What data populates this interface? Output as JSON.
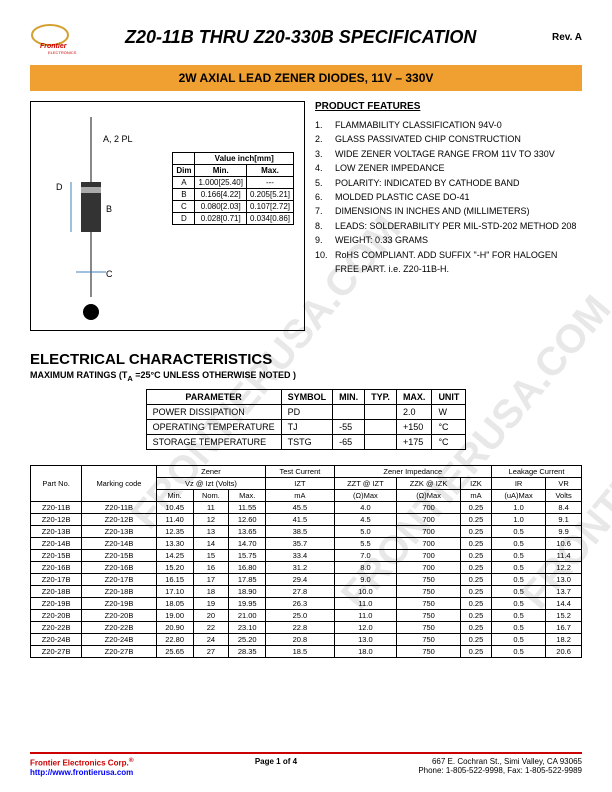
{
  "header": {
    "title": "Z20-11B THRU Z20-330B SPECIFICATION",
    "rev": "Rev. A"
  },
  "banner": "2W AXIAL LEAD ZENER DIODES, 11V – 330V",
  "dim_label_a": "A, 2 PL",
  "dim_label_b": "B",
  "dim_label_c": "C",
  "dim_label_d": "D",
  "dim_table": {
    "header": "Value inch[mm]",
    "cols": [
      "Dim",
      "Min.",
      "Max."
    ],
    "rows": [
      [
        "A",
        "1.000[25.40]",
        "---"
      ],
      [
        "B",
        "0.166[4.22]",
        "0.205[5.21]"
      ],
      [
        "C",
        "0.080[2.03]",
        "0.107[2.72]"
      ],
      [
        "D",
        "0.028[0.71]",
        "0.034[0.86]"
      ]
    ]
  },
  "features": {
    "title": "PRODUCT FEATURES",
    "items": [
      "FLAMMABILITY CLASSIFICATION 94V-0",
      "GLASS PASSIVATED CHIP CONSTRUCTION",
      "WIDE ZENER VOLTAGE RANGE FROM 11V TO 330V",
      "LOW ZENER IMPEDANCE",
      "POLARITY: INDICATED BY CATHODE BAND",
      "MOLDED PLASTIC CASE DO-41",
      "DIMENSIONS IN INCHES AND (MILLIMETERS)",
      "LEADS: SOLDERABILITY PER MIL-STD-202 METHOD 208",
      "WEIGHT: 0.33 GRAMS",
      "RoHS COMPLIANT.   ADD SUFFIX \"-H\" FOR HALOGEN FREE PART.   i.e. Z20-11B-H."
    ]
  },
  "elec": {
    "title": "ELECTRICAL CHARACTERISTICS",
    "sub": "MAXIMUM RATINGS (T",
    "sub_a": "A",
    "sub2": " =25°C UNLESS OTHERWISE NOTED )"
  },
  "ratings": {
    "cols": [
      "PARAMETER",
      "SYMBOL",
      "MIN.",
      "TYP.",
      "MAX.",
      "UNIT"
    ],
    "rows": [
      [
        "POWER DISSIPATION",
        "PD",
        "",
        "",
        "2.0",
        "W"
      ],
      [
        "OPERATING TEMPERATURE",
        "TJ",
        "-55",
        "",
        "+150",
        "°C"
      ],
      [
        "STORAGE TEMPERATURE",
        "TSTG",
        "-65",
        "",
        "+175",
        "°C"
      ]
    ]
  },
  "main": {
    "group_headers": [
      "",
      "",
      "Zener",
      "Test Current",
      "Zener Impedance",
      "Leakage Current"
    ],
    "sub_headers1": [
      "Part No.",
      "Marking code",
      "Vz  @  Izt  (Volts)",
      "IZT",
      "ZZT @ IZT",
      "ZZK @ IZK",
      "IZK",
      "IR",
      "VR"
    ],
    "sub_headers2": [
      "Min.",
      "Nom.",
      "Max.",
      "mA",
      "(Ω)Max",
      "(Ω)Max",
      "mA",
      "(uA)Max",
      "Volts"
    ],
    "rows": [
      [
        "Z20-11B",
        "Z20-11B",
        "10.45",
        "11",
        "11.55",
        "45.5",
        "4.0",
        "700",
        "0.25",
        "1.0",
        "8.4"
      ],
      [
        "Z20-12B",
        "Z20-12B",
        "11.40",
        "12",
        "12.60",
        "41.5",
        "4.5",
        "700",
        "0.25",
        "1.0",
        "9.1"
      ],
      [
        "Z20-13B",
        "Z20-13B",
        "12.35",
        "13",
        "13.65",
        "38.5",
        "5.0",
        "700",
        "0.25",
        "0.5",
        "9.9"
      ],
      [
        "Z20-14B",
        "Z20-14B",
        "13.30",
        "14",
        "14.70",
        "35.7",
        "5.5",
        "700",
        "0.25",
        "0.5",
        "10.6"
      ],
      [
        "Z20-15B",
        "Z20-15B",
        "14.25",
        "15",
        "15.75",
        "33.4",
        "7.0",
        "700",
        "0.25",
        "0.5",
        "11.4"
      ],
      [
        "Z20-16B",
        "Z20-16B",
        "15.20",
        "16",
        "16.80",
        "31.2",
        "8.0",
        "700",
        "0.25",
        "0.5",
        "12.2"
      ],
      [
        "Z20-17B",
        "Z20-17B",
        "16.15",
        "17",
        "17.85",
        "29.4",
        "9.0",
        "750",
        "0.25",
        "0.5",
        "13.0"
      ],
      [
        "Z20-18B",
        "Z20-18B",
        "17.10",
        "18",
        "18.90",
        "27.8",
        "10.0",
        "750",
        "0.25",
        "0.5",
        "13.7"
      ],
      [
        "Z20-19B",
        "Z20-19B",
        "18.05",
        "19",
        "19.95",
        "26.3",
        "11.0",
        "750",
        "0.25",
        "0.5",
        "14.4"
      ],
      [
        "Z20-20B",
        "Z20-20B",
        "19.00",
        "20",
        "21.00",
        "25.0",
        "11.0",
        "750",
        "0.25",
        "0.5",
        "15.2"
      ],
      [
        "Z20-22B",
        "Z20-22B",
        "20.90",
        "22",
        "23.10",
        "22.8",
        "12.0",
        "750",
        "0.25",
        "0.5",
        "16.7"
      ],
      [
        "Z20-24B",
        "Z20-24B",
        "22.80",
        "24",
        "25.20",
        "20.8",
        "13.0",
        "750",
        "0.25",
        "0.5",
        "18.2"
      ],
      [
        "Z20-27B",
        "Z20-27B",
        "25.65",
        "27",
        "28.35",
        "18.5",
        "18.0",
        "750",
        "0.25",
        "0.5",
        "20.6"
      ]
    ]
  },
  "footer": {
    "company": "Frontier Electronics Corp.",
    "reg": "®",
    "url": "http://www.frontierusa.com",
    "page": "Page 1 of 4",
    "addr": "667 E. Cochran St., Simi Valley, CA 93065",
    "phone": "Phone: 1-805-522-9998, Fax: 1-805-522-9989"
  },
  "colors": {
    "banner_bg": "#f0a030",
    "red": "#c00000",
    "blue": "#0000ff",
    "link_arrow": "#4080c0"
  }
}
